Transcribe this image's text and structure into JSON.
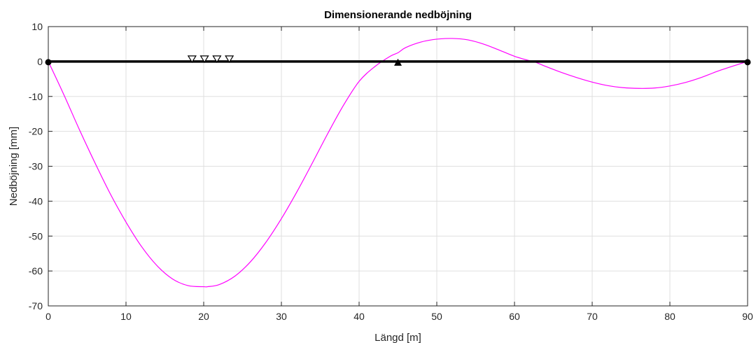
{
  "chart_data": {
    "type": "line",
    "title": "Dimensionerande nedböjning",
    "xlabel": "Längd [m]",
    "ylabel": "Nedböjning [mm]",
    "xlim": [
      0,
      90
    ],
    "ylim": [
      -70,
      10
    ],
    "xticks": [
      0,
      10,
      20,
      30,
      40,
      50,
      60,
      70,
      80,
      90
    ],
    "yticks": [
      10,
      0,
      -10,
      -20,
      -30,
      -40,
      -50,
      -60,
      -70
    ],
    "grid": true,
    "colors": {
      "deflection": "#ff00ff",
      "beam": "#000000",
      "grid": "#dfdfdf",
      "axes": "#262626"
    },
    "series": [
      {
        "color": "#ff00ff",
        "x": [
          0,
          2,
          4,
          6,
          8,
          10,
          12,
          14,
          16,
          18,
          20,
          20.5,
          22,
          24,
          26,
          28,
          30,
          32,
          34,
          36,
          38,
          40,
          42,
          44,
          45,
          46,
          48,
          50,
          52,
          54,
          56,
          58,
          60,
          62,
          62.5,
          64,
          66,
          68,
          70,
          72,
          74,
          76,
          78,
          80,
          82,
          84,
          86,
          88,
          90
        ],
        "y": [
          0,
          -9.5,
          -19.5,
          -29,
          -38,
          -46,
          -53,
          -58.5,
          -62.3,
          -64.2,
          -64.5,
          -64.5,
          -63.9,
          -61.5,
          -57.4,
          -51.8,
          -45,
          -37.3,
          -29,
          -20.5,
          -12.5,
          -5.7,
          -1.5,
          1.5,
          2.5,
          4,
          5.6,
          6.4,
          6.6,
          6.2,
          5,
          3.3,
          1.5,
          0.2,
          0,
          -1.4,
          -3.1,
          -4.6,
          -5.9,
          -6.9,
          -7.5,
          -7.7,
          -7.6,
          -7,
          -6,
          -4.6,
          -2.9,
          -1.4,
          0
        ]
      }
    ],
    "beam": {
      "x": [
        0,
        90
      ],
      "y": [
        0,
        0
      ]
    },
    "supports": [
      {
        "type": "pinned",
        "x": 0,
        "y": 0
      },
      {
        "type": "fixed",
        "x": 45,
        "y": 0
      },
      {
        "type": "pinned",
        "x": 90,
        "y": 0
      }
    ],
    "loads": [
      {
        "x": 18.5,
        "y": 0
      },
      {
        "x": 20.1,
        "y": 0
      },
      {
        "x": 21.7,
        "y": 0
      },
      {
        "x": 23.3,
        "y": 0
      }
    ]
  }
}
